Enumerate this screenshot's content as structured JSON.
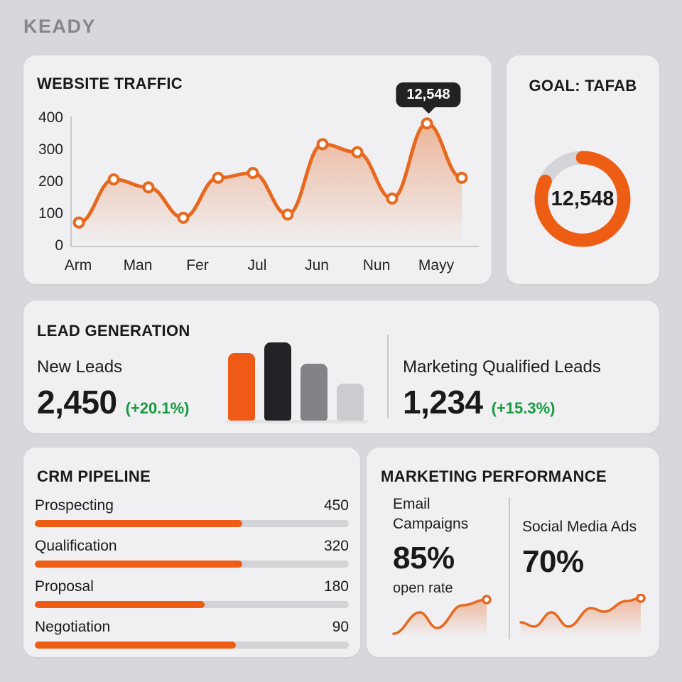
{
  "header": {
    "title": "KEADY"
  },
  "colors": {
    "page_bg": "#D8D8DC",
    "card_bg": "#F0F0F2",
    "accent": "#ED5E14",
    "line": "#E7691F",
    "green": "#169A40",
    "tooltip_bg": "#222224",
    "track_gray": "#D3D3D7",
    "bar_colors": [
      "#F05A17",
      "#232327",
      "#828288",
      "#CBCBD0"
    ]
  },
  "traffic": {
    "title": "WEBSITE TRAFFIC",
    "tooltip_label": "12,548"
  },
  "goal": {
    "title": "GOAL: TAFAB",
    "value": "12,548",
    "progress_pct": 82
  },
  "leads": {
    "title": "LEAD GENERATION",
    "new": {
      "label": "New Leads",
      "value": "2,450",
      "delta": "(+20.1%)"
    },
    "mql": {
      "label": "Marketing Qualified Leads",
      "value": "1,234",
      "delta": "(+15.3%)"
    }
  },
  "pipeline": {
    "title": "CRM PIPELINE",
    "stages": [
      {
        "label": "Prospecting",
        "value": "450",
        "fill_pct": 66
      },
      {
        "label": "Qualification",
        "value": "320",
        "fill_pct": 66
      },
      {
        "label": "Proposal",
        "value": "180",
        "fill_pct": 54
      },
      {
        "label": "Negotiation",
        "value": "90",
        "fill_pct": 64
      }
    ]
  },
  "marketing": {
    "title": "MARKETING PERFORMANCE",
    "email": {
      "label": "Email Campaigns",
      "value": "85%",
      "sublabel": "open rate"
    },
    "social": {
      "label": "Social Media Ads",
      "value": "70%"
    }
  },
  "chart_data": [
    {
      "type": "line",
      "title": "WEBSITE TRAFFIC",
      "x_tick_labels": [
        "Arm",
        "Man",
        "Fer",
        "Jul",
        "Jun",
        "Nun",
        "Mayy"
      ],
      "y_ticks": [
        400,
        300,
        200,
        100,
        0
      ],
      "ylim": [
        0,
        400
      ],
      "grid": false,
      "legend": "none",
      "series": [
        {
          "name": "traffic",
          "values": [
            75,
            210,
            185,
            90,
            215,
            230,
            100,
            320,
            295,
            150,
            385,
            215
          ]
        }
      ],
      "highlight": {
        "point_index": 10,
        "label": "12,548"
      }
    },
    {
      "type": "pie",
      "subtype": "donut",
      "title": "GOAL: TAFAB",
      "center_label": "12,548",
      "values": [
        82,
        18
      ],
      "labels": [
        "progress",
        "remaining"
      ]
    },
    {
      "type": "bar",
      "title": "LEAD GENERATION mini bars",
      "relative_heights_pct": [
        86,
        100,
        73,
        47
      ]
    },
    {
      "type": "bar",
      "subtype": "horizontal-progress",
      "title": "CRM PIPELINE",
      "categories": [
        "Prospecting",
        "Qualification",
        "Proposal",
        "Negotiation"
      ],
      "values": [
        450,
        320,
        180,
        90
      ],
      "bar_fill_pct": [
        66,
        66,
        54,
        64
      ]
    },
    {
      "type": "line",
      "subtype": "sparkline",
      "title": "Email Campaigns open rate trend",
      "points": [
        [
          3,
          56
        ],
        [
          40,
          26
        ],
        [
          64,
          48
        ],
        [
          100,
          16
        ],
        [
          134,
          8
        ]
      ]
    },
    {
      "type": "line",
      "subtype": "sparkline",
      "title": "Social Media Ads trend",
      "points": [
        [
          3,
          40
        ],
        [
          22,
          46
        ],
        [
          46,
          26
        ],
        [
          70,
          46
        ],
        [
          102,
          20
        ],
        [
          120,
          25
        ],
        [
          152,
          10
        ],
        [
          172,
          6
        ]
      ]
    }
  ]
}
